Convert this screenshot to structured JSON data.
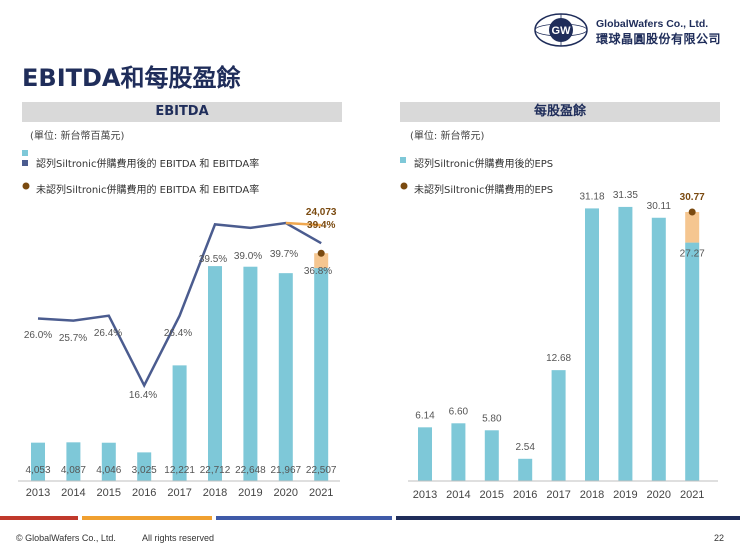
{
  "slide": {
    "title": "EBITDA和每股盈餘",
    "page_number": "22",
    "copyright": "© GlobalWafers Co., Ltd.",
    "rights": "All rights reserved"
  },
  "logo": {
    "mark": "GW",
    "name_en": "GlobalWafers Co., Ltd.",
    "name_zh": "環球晶圓股份有限公司"
  },
  "colors": {
    "bar": "#7ec8d8",
    "bar_extra": "#f5c690",
    "line": "#4b5c8f",
    "line_extra": "#f0a850",
    "dot": "#7a4a10",
    "footer_red": "#c0392b",
    "footer_orange": "#f0a030",
    "footer_blue": "#3f5aa8",
    "footer_navy": "#1f2d5a"
  },
  "chart_data": [
    {
      "type": "bar",
      "title": "EBITDA",
      "unit_label": "(單位: 新台幣百萬元)",
      "legend": {
        "with_cost": "認列Siltronic併購費用後的 EBITDA 和 EBITDA率",
        "without_cost": "未認列Siltronic併購費用的 EBITDA 和 EBITDA率"
      },
      "categories": [
        "2013",
        "2014",
        "2015",
        "2016",
        "2017",
        "2018",
        "2019",
        "2020",
        "2021"
      ],
      "bar_labels": [
        "4,053",
        "4,087",
        "4,046",
        "3,025",
        "12,221",
        "22,712",
        "22,648",
        "21,967",
        "22,507"
      ],
      "values": [
        4053,
        4087,
        4046,
        3025,
        12221,
        22712,
        22648,
        21967,
        22507
      ],
      "extra_value": 24073,
      "extra_label": "24,073",
      "margin_values": [
        26.0,
        25.7,
        26.4,
        16.4,
        26.4,
        39.5,
        39.0,
        39.7,
        36.8
      ],
      "margin_labels": [
        "26.0%",
        "25.7%",
        "26.4%",
        "16.4%",
        "26.4%",
        "39.5%",
        "39.0%",
        "39.7%",
        "36.8%"
      ],
      "extra_margin": 39.4,
      "extra_margin_label": "39.4%",
      "bar_max": 26000,
      "line_range": [
        10,
        43
      ]
    },
    {
      "type": "bar",
      "title": "每股盈餘",
      "unit_label": "(單位: 新台幣元)",
      "legend": {
        "with_cost": "認列Siltronic併購費用後的EPS",
        "without_cost": "未認列Siltronic併購費用的EPS"
      },
      "categories": [
        "2013",
        "2014",
        "2015",
        "2016",
        "2017",
        "2018",
        "2019",
        "2020",
        "2021"
      ],
      "values": [
        6.14,
        6.6,
        5.8,
        2.54,
        12.68,
        31.18,
        31.35,
        30.11,
        27.27
      ],
      "bar_labels": [
        "6.14",
        "6.60",
        "5.80",
        "2.54",
        "12.68",
        "31.18",
        "31.35",
        "30.11",
        "27.27"
      ],
      "extra_value": 30.77,
      "extra_label": "30.77",
      "bar_max": 35
    }
  ]
}
